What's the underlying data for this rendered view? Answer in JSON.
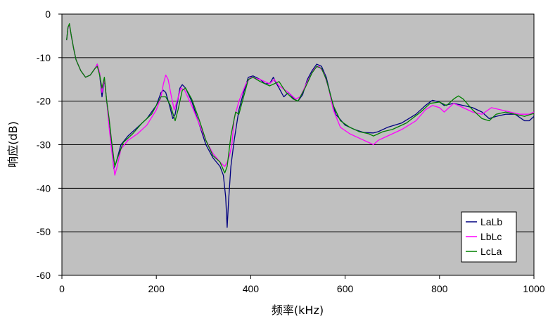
{
  "chart_data": {
    "type": "line",
    "xlabel": "频率(kHz)",
    "ylabel": "响应(dB)",
    "xlim": [
      0,
      1000
    ],
    "ylim": [
      -60,
      0
    ],
    "x_ticks": [
      0,
      200,
      400,
      600,
      800,
      1000
    ],
    "y_ticks": [
      0,
      -10,
      -20,
      -30,
      -40,
      -50,
      -60
    ],
    "plot_background": "#c0c0c0",
    "grid": "horizontal",
    "legend_position": "bottom-right",
    "series": [
      {
        "name": "LaLb",
        "color": "#000080",
        "points": [
          [
            10,
            -6
          ],
          [
            13,
            -3
          ],
          [
            16,
            -2.5
          ],
          [
            20,
            -5
          ],
          [
            25,
            -8
          ],
          [
            30,
            -10.5
          ],
          [
            40,
            -13
          ],
          [
            50,
            -14.5
          ],
          [
            60,
            -14
          ],
          [
            70,
            -12.5
          ],
          [
            75,
            -11.5
          ],
          [
            80,
            -14
          ],
          [
            85,
            -19
          ],
          [
            90,
            -15
          ],
          [
            95,
            -20
          ],
          [
            100,
            -25
          ],
          [
            105,
            -30
          ],
          [
            110,
            -35.5
          ],
          [
            115,
            -34
          ],
          [
            125,
            -30
          ],
          [
            140,
            -28
          ],
          [
            160,
            -26
          ],
          [
            180,
            -24
          ],
          [
            200,
            -21
          ],
          [
            210,
            -18
          ],
          [
            215,
            -17.5
          ],
          [
            220,
            -18
          ],
          [
            228,
            -21
          ],
          [
            235,
            -24
          ],
          [
            240,
            -23
          ],
          [
            250,
            -17
          ],
          [
            255,
            -16.2
          ],
          [
            262,
            -17
          ],
          [
            275,
            -20
          ],
          [
            290,
            -25
          ],
          [
            305,
            -30
          ],
          [
            320,
            -33
          ],
          [
            335,
            -35
          ],
          [
            342,
            -37
          ],
          [
            347,
            -42
          ],
          [
            350,
            -49
          ],
          [
            353,
            -43
          ],
          [
            358,
            -35
          ],
          [
            365,
            -29
          ],
          [
            375,
            -22
          ],
          [
            385,
            -18
          ],
          [
            395,
            -14.5
          ],
          [
            405,
            -14.2
          ],
          [
            420,
            -15
          ],
          [
            430,
            -16
          ],
          [
            440,
            -16
          ],
          [
            448,
            -14.5
          ],
          [
            452,
            -15.5
          ],
          [
            460,
            -17
          ],
          [
            470,
            -19
          ],
          [
            480,
            -18
          ],
          [
            492,
            -19.5
          ],
          [
            500,
            -20
          ],
          [
            510,
            -18.5
          ],
          [
            520,
            -15
          ],
          [
            530,
            -13
          ],
          [
            540,
            -11.5
          ],
          [
            550,
            -12
          ],
          [
            560,
            -14.5
          ],
          [
            570,
            -19
          ],
          [
            580,
            -23
          ],
          [
            600,
            -25.5
          ],
          [
            620,
            -26.5
          ],
          [
            640,
            -27.2
          ],
          [
            660,
            -27.3
          ],
          [
            670,
            -27
          ],
          [
            690,
            -26
          ],
          [
            720,
            -25
          ],
          [
            750,
            -23
          ],
          [
            770,
            -21
          ],
          [
            785,
            -19.8
          ],
          [
            800,
            -20.2
          ],
          [
            810,
            -21
          ],
          [
            830,
            -20.5
          ],
          [
            850,
            -21
          ],
          [
            870,
            -21.5
          ],
          [
            890,
            -22.5
          ],
          [
            905,
            -24
          ],
          [
            920,
            -23.5
          ],
          [
            940,
            -23
          ],
          [
            960,
            -23
          ],
          [
            980,
            -24.5
          ],
          [
            990,
            -24.5
          ],
          [
            1000,
            -23.5
          ]
        ]
      },
      {
        "name": "LbLc",
        "color": "#ff00ff",
        "points": [
          [
            10,
            -6
          ],
          [
            13,
            -3
          ],
          [
            16,
            -2.6
          ],
          [
            20,
            -5
          ],
          [
            25,
            -8
          ],
          [
            30,
            -10.5
          ],
          [
            40,
            -13
          ],
          [
            50,
            -14.5
          ],
          [
            60,
            -14
          ],
          [
            70,
            -12.5
          ],
          [
            75,
            -11.5
          ],
          [
            80,
            -13.5
          ],
          [
            85,
            -18
          ],
          [
            90,
            -15
          ],
          [
            95,
            -20
          ],
          [
            100,
            -26
          ],
          [
            105,
            -31
          ],
          [
            112,
            -37
          ],
          [
            117,
            -35
          ],
          [
            125,
            -31
          ],
          [
            140,
            -29
          ],
          [
            160,
            -27.5
          ],
          [
            180,
            -25.5
          ],
          [
            200,
            -22
          ],
          [
            210,
            -19
          ],
          [
            215,
            -16
          ],
          [
            220,
            -14
          ],
          [
            225,
            -15
          ],
          [
            232,
            -19
          ],
          [
            238,
            -22
          ],
          [
            244,
            -20
          ],
          [
            252,
            -17
          ],
          [
            260,
            -17.5
          ],
          [
            275,
            -21
          ],
          [
            290,
            -25
          ],
          [
            305,
            -29
          ],
          [
            320,
            -32
          ],
          [
            335,
            -34
          ],
          [
            345,
            -35
          ],
          [
            350,
            -34
          ],
          [
            355,
            -32.5
          ],
          [
            360,
            -30
          ],
          [
            365,
            -24
          ],
          [
            375,
            -20
          ],
          [
            390,
            -16
          ],
          [
            400,
            -14.5
          ],
          [
            420,
            -15
          ],
          [
            440,
            -16
          ],
          [
            450,
            -15
          ],
          [
            460,
            -16.5
          ],
          [
            480,
            -18
          ],
          [
            495,
            -19.5
          ],
          [
            505,
            -19
          ],
          [
            520,
            -15.5
          ],
          [
            535,
            -12.5
          ],
          [
            545,
            -12
          ],
          [
            555,
            -13.5
          ],
          [
            565,
            -17
          ],
          [
            575,
            -22
          ],
          [
            590,
            -26
          ],
          [
            610,
            -27.5
          ],
          [
            630,
            -28.5
          ],
          [
            650,
            -29.5
          ],
          [
            660,
            -30
          ],
          [
            670,
            -29
          ],
          [
            690,
            -28
          ],
          [
            720,
            -26.5
          ],
          [
            750,
            -24.5
          ],
          [
            770,
            -22
          ],
          [
            785,
            -21
          ],
          [
            800,
            -21.5
          ],
          [
            810,
            -22.5
          ],
          [
            820,
            -21.5
          ],
          [
            830,
            -20.5
          ],
          [
            850,
            -21.5
          ],
          [
            870,
            -22.5
          ],
          [
            890,
            -23
          ],
          [
            910,
            -21.5
          ],
          [
            930,
            -22
          ],
          [
            950,
            -22.5
          ],
          [
            970,
            -23
          ],
          [
            990,
            -23
          ],
          [
            1000,
            -22.5
          ]
        ]
      },
      {
        "name": "LcLa",
        "color": "#008000",
        "points": [
          [
            10,
            -6
          ],
          [
            13,
            -3
          ],
          [
            16,
            -2.2
          ],
          [
            20,
            -5
          ],
          [
            25,
            -8
          ],
          [
            30,
            -10.5
          ],
          [
            40,
            -13
          ],
          [
            50,
            -14.5
          ],
          [
            60,
            -14
          ],
          [
            70,
            -12.5
          ],
          [
            75,
            -12
          ],
          [
            80,
            -14
          ],
          [
            85,
            -17
          ],
          [
            90,
            -14.5
          ],
          [
            95,
            -20
          ],
          [
            100,
            -24
          ],
          [
            105,
            -29
          ],
          [
            112,
            -35
          ],
          [
            118,
            -33
          ],
          [
            130,
            -29.5
          ],
          [
            150,
            -27.5
          ],
          [
            170,
            -25
          ],
          [
            190,
            -23
          ],
          [
            210,
            -19
          ],
          [
            220,
            -19
          ],
          [
            230,
            -21
          ],
          [
            240,
            -24.5
          ],
          [
            246,
            -22
          ],
          [
            255,
            -17.5
          ],
          [
            262,
            -17
          ],
          [
            275,
            -19.5
          ],
          [
            290,
            -24
          ],
          [
            305,
            -29
          ],
          [
            320,
            -32.5
          ],
          [
            335,
            -34
          ],
          [
            345,
            -36.5
          ],
          [
            350,
            -35
          ],
          [
            358,
            -28
          ],
          [
            368,
            -22.5
          ],
          [
            375,
            -23
          ],
          [
            385,
            -19
          ],
          [
            395,
            -15
          ],
          [
            405,
            -14.5
          ],
          [
            420,
            -15.5
          ],
          [
            440,
            -16.5
          ],
          [
            460,
            -15.5
          ],
          [
            475,
            -18
          ],
          [
            490,
            -19.5
          ],
          [
            500,
            -20
          ],
          [
            515,
            -17
          ],
          [
            530,
            -13.5
          ],
          [
            540,
            -12
          ],
          [
            550,
            -12.5
          ],
          [
            560,
            -15
          ],
          [
            575,
            -21
          ],
          [
            590,
            -24.5
          ],
          [
            610,
            -26
          ],
          [
            630,
            -27
          ],
          [
            650,
            -27.5
          ],
          [
            660,
            -28
          ],
          [
            680,
            -27
          ],
          [
            700,
            -26.5
          ],
          [
            730,
            -25
          ],
          [
            760,
            -22.5
          ],
          [
            780,
            -20.5
          ],
          [
            800,
            -20.2
          ],
          [
            815,
            -21
          ],
          [
            830,
            -19.5
          ],
          [
            840,
            -18.8
          ],
          [
            850,
            -19.5
          ],
          [
            870,
            -22
          ],
          [
            890,
            -24
          ],
          [
            905,
            -24.5
          ],
          [
            920,
            -23
          ],
          [
            940,
            -22.5
          ],
          [
            960,
            -23
          ],
          [
            980,
            -23.5
          ],
          [
            1000,
            -22.8
          ]
        ]
      }
    ]
  }
}
